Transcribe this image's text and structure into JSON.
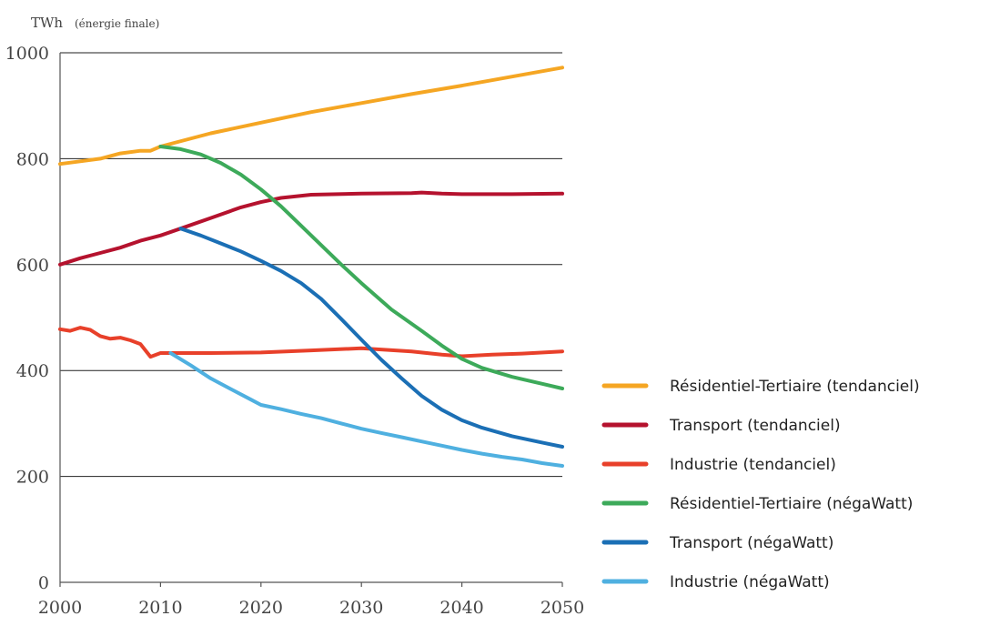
{
  "chart_data": {
    "type": "line",
    "ylabel": "TWh",
    "ylabel_note": "(énergie finale)",
    "xlim": [
      2000,
      2050
    ],
    "ylim": [
      0,
      1000
    ],
    "x_ticks": [
      2000,
      2010,
      2020,
      2030,
      2040,
      2050
    ],
    "y_ticks": [
      0,
      200,
      400,
      600,
      800,
      1000
    ],
    "grid": "horizontal",
    "legend_position": "right",
    "series": [
      {
        "name": "Résidentiel-Tertiaire (tendanciel)",
        "color": "#F5A623",
        "points": [
          [
            2000,
            790
          ],
          [
            2002,
            795
          ],
          [
            2004,
            800
          ],
          [
            2006,
            810
          ],
          [
            2008,
            815
          ],
          [
            2009,
            815
          ],
          [
            2010,
            823
          ],
          [
            2015,
            848
          ],
          [
            2020,
            868
          ],
          [
            2025,
            888
          ],
          [
            2030,
            905
          ],
          [
            2035,
            922
          ],
          [
            2040,
            938
          ],
          [
            2045,
            955
          ],
          [
            2050,
            972
          ]
        ]
      },
      {
        "name": "Transport (tendanciel)",
        "color": "#B5122E",
        "points": [
          [
            2000,
            600
          ],
          [
            2002,
            612
          ],
          [
            2004,
            622
          ],
          [
            2006,
            632
          ],
          [
            2008,
            645
          ],
          [
            2010,
            655
          ],
          [
            2012,
            668
          ],
          [
            2015,
            688
          ],
          [
            2018,
            708
          ],
          [
            2020,
            718
          ],
          [
            2022,
            726
          ],
          [
            2025,
            732
          ],
          [
            2030,
            734
          ],
          [
            2035,
            735
          ],
          [
            2036,
            736
          ],
          [
            2038,
            734
          ],
          [
            2040,
            733
          ],
          [
            2045,
            733
          ],
          [
            2050,
            734
          ]
        ]
      },
      {
        "name": "Industrie (tendanciel)",
        "color": "#E8402A",
        "points": [
          [
            2000,
            478
          ],
          [
            2001,
            475
          ],
          [
            2002,
            481
          ],
          [
            2003,
            477
          ],
          [
            2004,
            465
          ],
          [
            2005,
            460
          ],
          [
            2006,
            462
          ],
          [
            2007,
            457
          ],
          [
            2008,
            450
          ],
          [
            2009,
            426
          ],
          [
            2010,
            433
          ],
          [
            2015,
            433
          ],
          [
            2020,
            434
          ],
          [
            2025,
            438
          ],
          [
            2030,
            442
          ],
          [
            2035,
            436
          ],
          [
            2038,
            430
          ],
          [
            2040,
            427
          ],
          [
            2043,
            430
          ],
          [
            2046,
            432
          ],
          [
            2050,
            436
          ]
        ]
      },
      {
        "name": "Résidentiel-Tertiaire (négaWatt)",
        "color": "#3DAA5A",
        "points": [
          [
            2010,
            823
          ],
          [
            2012,
            818
          ],
          [
            2014,
            808
          ],
          [
            2016,
            792
          ],
          [
            2018,
            770
          ],
          [
            2020,
            742
          ],
          [
            2022,
            710
          ],
          [
            2025,
            655
          ],
          [
            2028,
            600
          ],
          [
            2030,
            565
          ],
          [
            2033,
            515
          ],
          [
            2036,
            475
          ],
          [
            2038,
            447
          ],
          [
            2040,
            422
          ],
          [
            2042,
            405
          ],
          [
            2045,
            388
          ],
          [
            2048,
            375
          ],
          [
            2050,
            366
          ]
        ]
      },
      {
        "name": "Transport (négaWatt)",
        "color": "#1B6FB5",
        "points": [
          [
            2012,
            668
          ],
          [
            2014,
            655
          ],
          [
            2016,
            640
          ],
          [
            2018,
            625
          ],
          [
            2020,
            607
          ],
          [
            2022,
            588
          ],
          [
            2024,
            565
          ],
          [
            2026,
            535
          ],
          [
            2028,
            497
          ],
          [
            2030,
            458
          ],
          [
            2032,
            420
          ],
          [
            2034,
            385
          ],
          [
            2036,
            352
          ],
          [
            2038,
            326
          ],
          [
            2040,
            306
          ],
          [
            2042,
            292
          ],
          [
            2045,
            276
          ],
          [
            2048,
            264
          ],
          [
            2050,
            256
          ]
        ]
      },
      {
        "name": "Industrie (négaWatt)",
        "color": "#4FB0E0",
        "points": [
          [
            2011,
            433
          ],
          [
            2013,
            410
          ],
          [
            2015,
            385
          ],
          [
            2017,
            365
          ],
          [
            2019,
            345
          ],
          [
            2020,
            335
          ],
          [
            2022,
            327
          ],
          [
            2024,
            318
          ],
          [
            2026,
            310
          ],
          [
            2028,
            300
          ],
          [
            2030,
            290
          ],
          [
            2032,
            282
          ],
          [
            2034,
            274
          ],
          [
            2036,
            266
          ],
          [
            2038,
            258
          ],
          [
            2040,
            250
          ],
          [
            2042,
            243
          ],
          [
            2044,
            237
          ],
          [
            2046,
            232
          ],
          [
            2048,
            225
          ],
          [
            2050,
            220
          ]
        ]
      }
    ]
  }
}
